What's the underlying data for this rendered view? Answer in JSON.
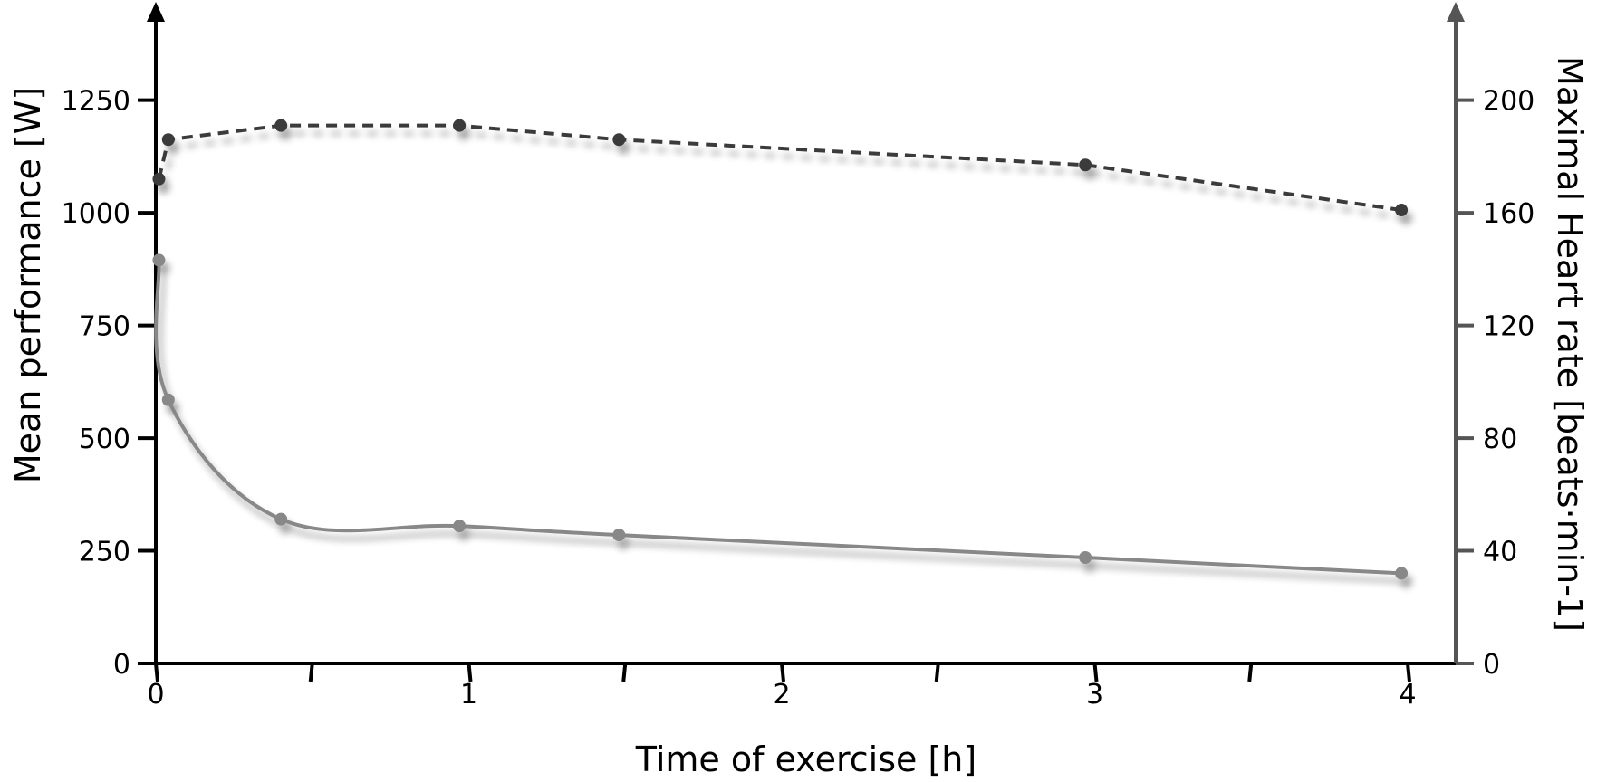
{
  "chart_data": {
    "type": "line",
    "xlabel": "Time of exercise [h]",
    "ylabel": "Mean performance [W]",
    "y2label": "Maximal Heart rate [beats·min-1]",
    "xlim": [
      0,
      4
    ],
    "ylim": [
      0,
      1400
    ],
    "y2lim": [
      0,
      224
    ],
    "x_ticks": [
      "0",
      "1",
      "2",
      "3",
      "4"
    ],
    "x_minor_ticks": [
      0.5,
      1.5,
      2.5,
      3.5
    ],
    "y_ticks": [
      "0",
      "250",
      "500",
      "750",
      "1000",
      "1250"
    ],
    "y2_ticks": [
      "0",
      "40",
      "80",
      "120",
      "160",
      "200"
    ],
    "grid": false,
    "series": [
      {
        "axis": "left",
        "style": "solid",
        "color": "#888888",
        "x": [
          0.01,
          0.04,
          0.4,
          0.97,
          1.48,
          2.97,
          3.98
        ],
        "values": [
          895,
          585,
          320,
          305,
          285,
          235,
          200
        ]
      },
      {
        "axis": "right",
        "style": "dashed",
        "color": "#3a3a3a",
        "x": [
          0.01,
          0.04,
          0.4,
          0.97,
          1.48,
          2.97,
          3.98
        ],
        "values": [
          172,
          186,
          191,
          191,
          186,
          177,
          161
        ]
      }
    ]
  }
}
